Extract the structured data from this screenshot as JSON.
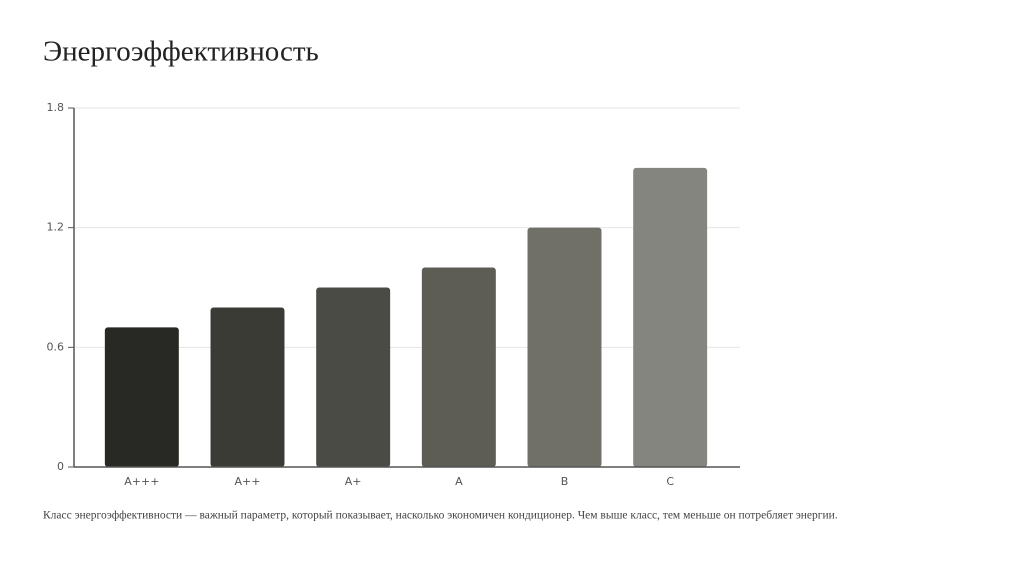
{
  "chart_data": {
    "type": "bar",
    "title": "Энергоэффективность",
    "categories": [
      "A+++",
      "A++",
      "A+",
      "A",
      "B",
      "C"
    ],
    "values": [
      0.7,
      0.8,
      0.9,
      1.0,
      1.2,
      1.5
    ],
    "colors": [
      "#282824",
      "#3b3b36",
      "#4b4b45",
      "#5d5c55",
      "#706f68",
      "#858580"
    ],
    "ylim": [
      0,
      1.8
    ],
    "yticks": [
      0,
      0.6,
      1.2,
      1.8
    ],
    "grid": true,
    "caption": "Класс энергоэффективности — важный параметр, который показывает, насколько экономичен кондиционер. Чем выше класс, тем меньше он потребляет энергии."
  }
}
